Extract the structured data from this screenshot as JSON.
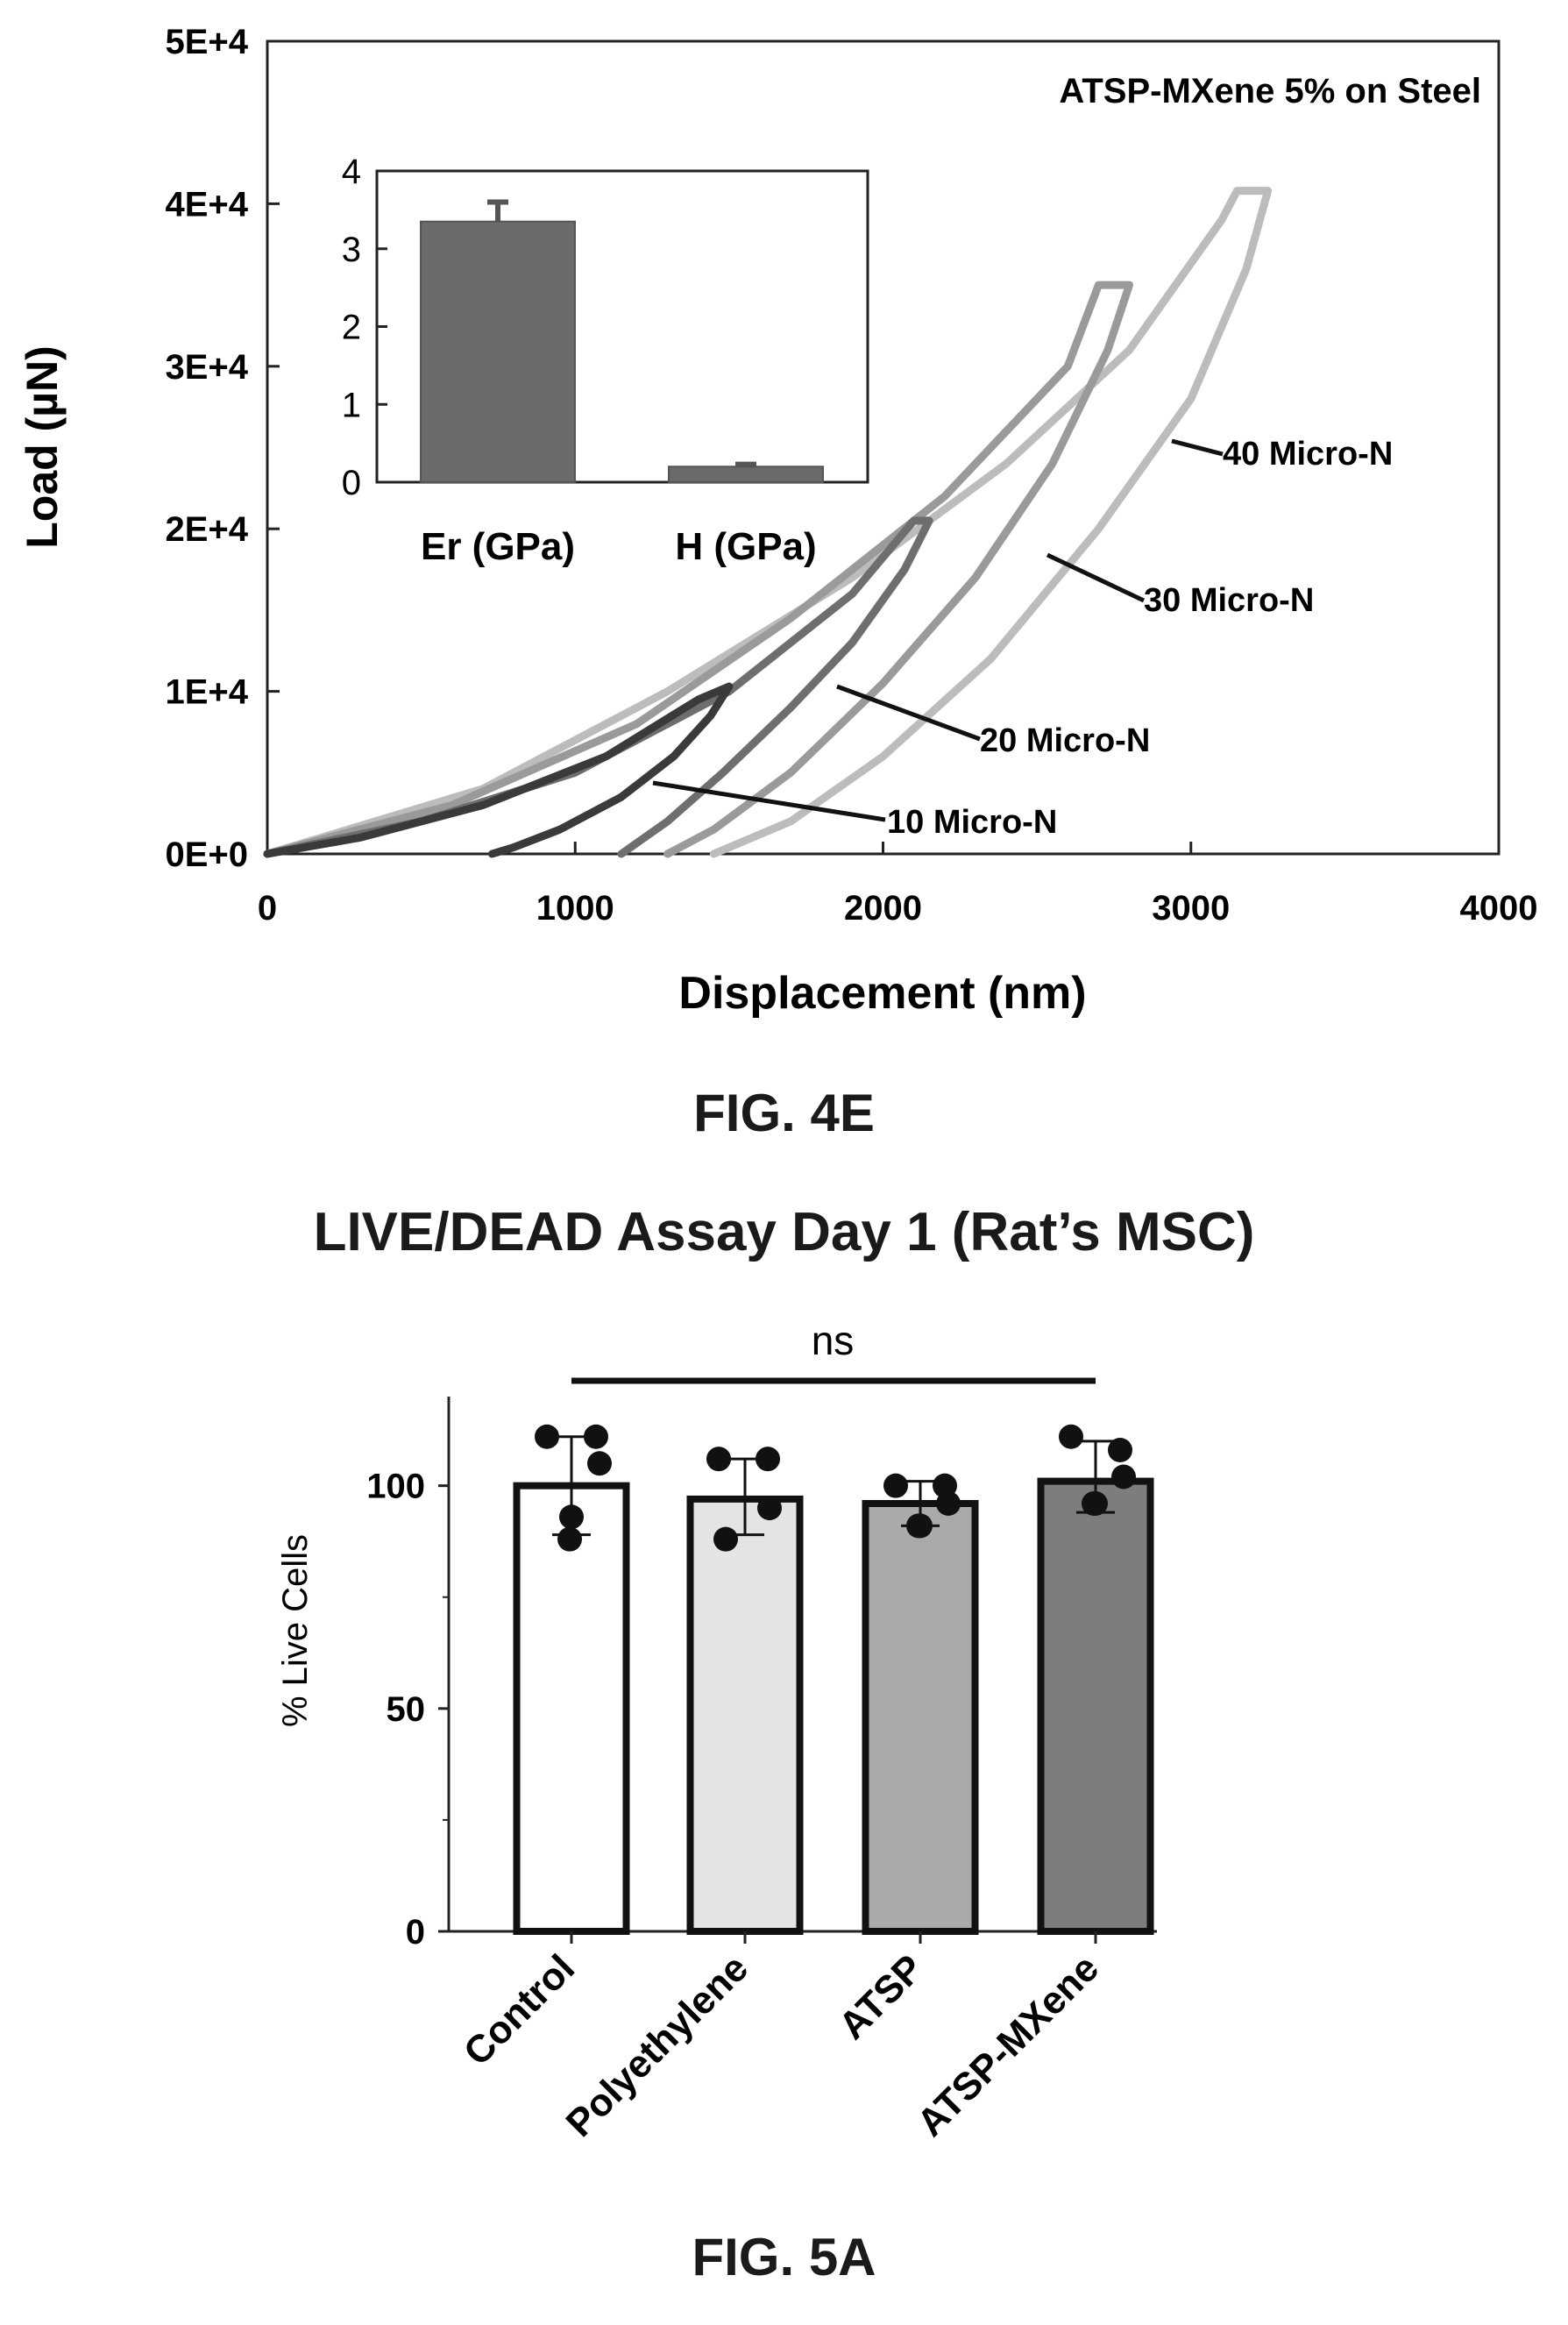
{
  "chart_data": [
    {
      "type": "line",
      "title": "ATSP-MXene 5%  on Steel",
      "xlabel": "Displacement (nm)",
      "ylabel": "Load (µN)",
      "xlim": [
        0,
        4000
      ],
      "ylim": [
        0,
        50000
      ],
      "x_ticks": [
        "0",
        "1000",
        "2000",
        "3000",
        "4000"
      ],
      "y_ticks": [
        "0E+0",
        "1E+4",
        "2E+4",
        "3E+4",
        "4E+4",
        "5E+4"
      ],
      "series": [
        {
          "name": "10 Micro-N",
          "color": "#3a3a3a",
          "loading": [
            [
              0,
              0
            ],
            [
              300,
              1000
            ],
            [
              700,
              3000
            ],
            [
              1100,
              6000
            ],
            [
              1400,
              9500
            ],
            [
              1500,
              10300
            ]
          ],
          "unloading": [
            [
              1500,
              10300
            ],
            [
              1440,
              8500
            ],
            [
              1320,
              6000
            ],
            [
              1150,
              3500
            ],
            [
              950,
              1500
            ],
            [
              800,
              400
            ],
            [
              730,
              0
            ]
          ]
        },
        {
          "name": "20 Micro-N",
          "color": "#6e6e6e",
          "loading": [
            [
              0,
              0
            ],
            [
              500,
              2000
            ],
            [
              1000,
              5000
            ],
            [
              1500,
              10000
            ],
            [
              1900,
              16000
            ],
            [
              2100,
              20500
            ],
            [
              2150,
              20500
            ]
          ],
          "unloading": [
            [
              2150,
              20500
            ],
            [
              2070,
              17500
            ],
            [
              1900,
              13000
            ],
            [
              1700,
              9000
            ],
            [
              1480,
              5000
            ],
            [
              1300,
              2000
            ],
            [
              1150,
              0
            ]
          ]
        },
        {
          "name": "30 Micro-N",
          "color": "#9a9a9a",
          "loading": [
            [
              0,
              0
            ],
            [
              600,
              3000
            ],
            [
              1200,
              8000
            ],
            [
              1700,
              14500
            ],
            [
              2200,
              22000
            ],
            [
              2600,
              30000
            ],
            [
              2700,
              35000
            ],
            [
              2800,
              35000
            ]
          ],
          "unloading": [
            [
              2800,
              35000
            ],
            [
              2730,
              31000
            ],
            [
              2550,
              24000
            ],
            [
              2300,
              17000
            ],
            [
              2000,
              10500
            ],
            [
              1700,
              5000
            ],
            [
              1450,
              1500
            ],
            [
              1300,
              0
            ]
          ]
        },
        {
          "name": "40 Micro-N",
          "color": "#bcbcbc",
          "loading": [
            [
              0,
              0
            ],
            [
              700,
              4000
            ],
            [
              1300,
              10000
            ],
            [
              1900,
              17000
            ],
            [
              2400,
              24000
            ],
            [
              2800,
              31000
            ],
            [
              3100,
              39000
            ],
            [
              3150,
              40800
            ],
            [
              3250,
              40800
            ]
          ],
          "unloading": [
            [
              3250,
              40800
            ],
            [
              3180,
              36000
            ],
            [
              3000,
              28000
            ],
            [
              2700,
              20000
            ],
            [
              2350,
              12000
            ],
            [
              2000,
              6000
            ],
            [
              1700,
              2000
            ],
            [
              1450,
              0
            ]
          ]
        }
      ],
      "annotations": [
        "40 Micro-N",
        "30 Micro-N",
        "20 Micro-N",
        "10 Micro-N"
      ],
      "inset": {
        "type": "bar",
        "categories": [
          "Er (GPa)",
          "H (GPa)"
        ],
        "values": [
          3.35,
          0.2
        ],
        "errors": [
          0.25,
          0.03
        ],
        "ylim": [
          0,
          4
        ],
        "y_ticks": [
          "0",
          "1",
          "2",
          "3",
          "4"
        ],
        "color": "#6a6a6a"
      }
    },
    {
      "type": "bar",
      "title": "LIVE/DEAD Assay Day 1 (Rat’s MSC)",
      "ylabel": "% Live Cells",
      "ylim": [
        0,
        120
      ],
      "y_ticks": [
        "0",
        "50",
        "100"
      ],
      "categories": [
        "Control",
        "Polyethylene",
        "ATSP",
        "ATSP-MXene"
      ],
      "values": [
        100,
        97,
        96,
        101
      ],
      "error_low": [
        89,
        89,
        91,
        94
      ],
      "error_high": [
        111,
        106,
        101,
        110
      ],
      "colors": [
        "#ffffff",
        "#e4e4e4",
        "#aaaaaa",
        "#7d7d7d"
      ],
      "points": [
        [
          111,
          111,
          105,
          93,
          88
        ],
        [
          106,
          106,
          95,
          88
        ],
        [
          100,
          100,
          96,
          91,
          91
        ],
        [
          111,
          108,
          102,
          96,
          96
        ]
      ],
      "significance_label": "ns"
    }
  ],
  "captions": {
    "fig4e": "FIG. 4E",
    "fig5a": "FIG. 5A"
  }
}
